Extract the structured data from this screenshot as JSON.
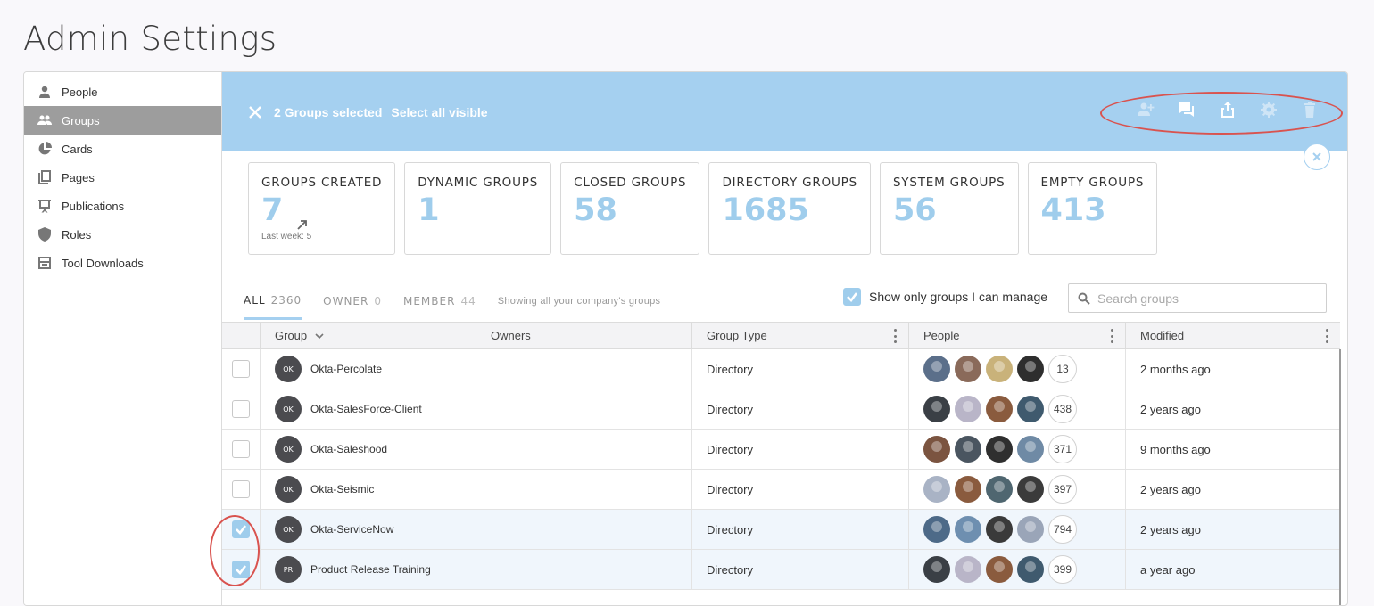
{
  "page": {
    "title": "Admin Settings"
  },
  "sidebar": {
    "items": [
      {
        "label": "People",
        "icon": "person-icon",
        "active": false
      },
      {
        "label": "Groups",
        "icon": "groups-icon",
        "active": true
      },
      {
        "label": "Cards",
        "icon": "pie-chart-icon",
        "active": false
      },
      {
        "label": "Pages",
        "icon": "pages-icon",
        "active": false
      },
      {
        "label": "Publications",
        "icon": "presentation-icon",
        "active": false
      },
      {
        "label": "Roles",
        "icon": "shield-icon",
        "active": false
      },
      {
        "label": "Tool Downloads",
        "icon": "download-tray-icon",
        "active": false
      }
    ]
  },
  "banner": {
    "selected_text": "2 Groups selected",
    "select_all_text": "Select all visible",
    "actions": [
      "add-member-icon",
      "message-icon",
      "share-icon",
      "settings-icon",
      "delete-icon"
    ]
  },
  "stats": [
    {
      "label": "GROUPS CREATED",
      "value": "7",
      "sub": "Last week: 5"
    },
    {
      "label": "DYNAMIC GROUPS",
      "value": "1"
    },
    {
      "label": "CLOSED GROUPS",
      "value": "58"
    },
    {
      "label": "DIRECTORY GROUPS",
      "value": "1685"
    },
    {
      "label": "SYSTEM GROUPS",
      "value": "56"
    },
    {
      "label": "EMPTY GROUPS",
      "value": "413"
    }
  ],
  "tabs": [
    {
      "label": "ALL",
      "count": "2360",
      "active": true
    },
    {
      "label": "OWNER",
      "count": "0",
      "active": false
    },
    {
      "label": "MEMBER",
      "count": "44",
      "active": false
    }
  ],
  "tabs_hint": "Showing all your company's groups",
  "filter": {
    "label": "Show only groups I can manage",
    "checked": true
  },
  "search": {
    "placeholder": "Search groups",
    "value": ""
  },
  "table": {
    "headers": {
      "group": "Group",
      "owners": "Owners",
      "type": "Group Type",
      "people": "People",
      "modified": "Modified"
    },
    "rows": [
      {
        "initials": "OK",
        "name": "Okta-Percolate",
        "owners": "",
        "type": "Directory",
        "count": "13",
        "modified": "2 months ago",
        "checked": false,
        "avatars": [
          "#5b6f8a",
          "#8a6a5a",
          "#c9b27a",
          "#2e2e2e"
        ]
      },
      {
        "initials": "OK",
        "name": "Okta-SalesForce-Client",
        "owners": "",
        "type": "Directory",
        "count": "438",
        "modified": "2 years ago",
        "checked": false,
        "avatars": [
          "#3a3f45",
          "#b9b5c8",
          "#8a5b3e",
          "#3f5a6e"
        ]
      },
      {
        "initials": "OK",
        "name": "Okta-Saleshood",
        "owners": "",
        "type": "Directory",
        "count": "371",
        "modified": "9 months ago",
        "checked": false,
        "avatars": [
          "#7b5440",
          "#4a5560",
          "#2f2f2f",
          "#6f8aa5"
        ]
      },
      {
        "initials": "OK",
        "name": "Okta-Seismic",
        "owners": "",
        "type": "Directory",
        "count": "397",
        "modified": "2 years ago",
        "checked": false,
        "avatars": [
          "#a9b3c5",
          "#8a5b3e",
          "#4f6670",
          "#3b3b3b"
        ]
      },
      {
        "initials": "OK",
        "name": "Okta-ServiceNow",
        "owners": "",
        "type": "Directory",
        "count": "794",
        "modified": "2 years ago",
        "checked": true,
        "avatars": [
          "#4d6a88",
          "#6e8fb0",
          "#3a3a3a",
          "#9aa5b8"
        ]
      },
      {
        "initials": "PR",
        "name": "Product Release Training",
        "owners": "",
        "type": "Directory",
        "count": "399",
        "modified": "a year ago",
        "checked": true,
        "avatars": [
          "#3a3f45",
          "#b9b5c8",
          "#8a5b3e",
          "#3f5a6e"
        ]
      }
    ]
  }
}
